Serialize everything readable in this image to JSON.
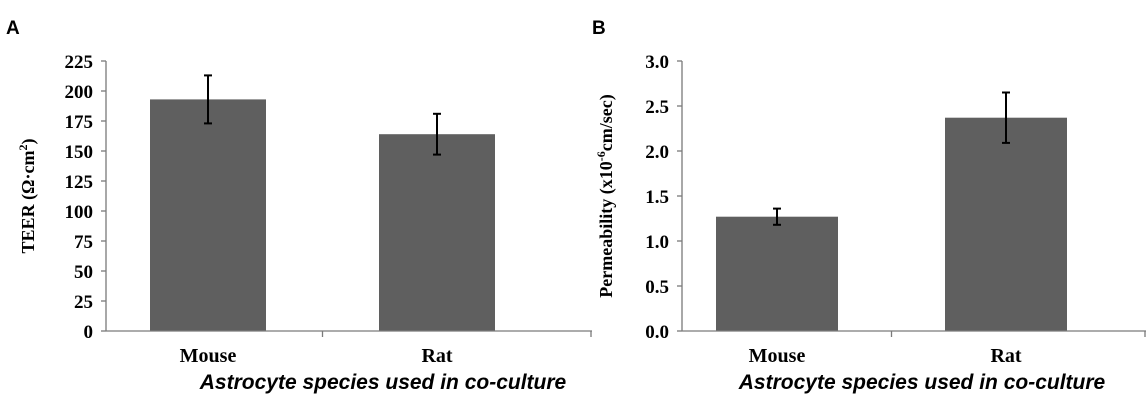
{
  "chart_data": [
    {
      "type": "bar",
      "panel": "A",
      "categories": [
        "Mouse",
        "Rat"
      ],
      "values": [
        193,
        164
      ],
      "errors": [
        20,
        17
      ],
      "ylabel_main": "TEER (Ω·cm",
      "ylabel_sup": "2",
      "ylabel_tail": ")",
      "xlabel": "Astrocyte species used in co-culture",
      "ylim": [
        0,
        225
      ],
      "yticks": [
        "0",
        "25",
        "50",
        "75",
        "100",
        "125",
        "150",
        "175",
        "200",
        "225"
      ],
      "grid": false,
      "bar_color": "#5f5f5f"
    },
    {
      "type": "bar",
      "panel": "B",
      "categories": [
        "Mouse",
        "Rat"
      ],
      "values": [
        1.27,
        2.37
      ],
      "errors": [
        0.09,
        0.28
      ],
      "ylabel_main": "Permeability (x10",
      "ylabel_sup": "-6",
      "ylabel_tail": "cm/sec)",
      "xlabel": "Astrocyte species used in co-culture",
      "ylim": [
        0,
        3.0
      ],
      "yticks": [
        "0.0",
        "0.5",
        "1.0",
        "1.5",
        "2.0",
        "2.5",
        "3.0"
      ],
      "grid": false,
      "bar_color": "#5f5f5f"
    }
  ]
}
